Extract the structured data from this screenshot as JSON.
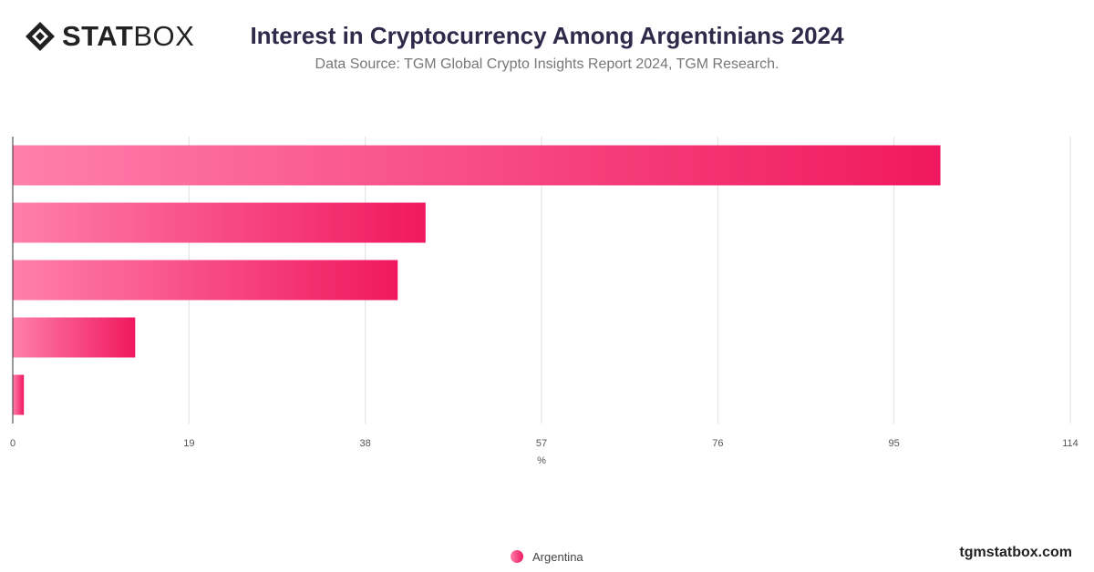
{
  "header": {
    "logo_text_bold": "STAT",
    "logo_text_light": "BOX",
    "title": "Interest in Cryptocurrency Among Argentinians 2024",
    "subtitle": "Data Source: TGM Global Crypto Insights Report 2024, TGM Research."
  },
  "footer": {
    "site": "tgmstatbox.com"
  },
  "colors": {
    "bar_start": "#ff7fab",
    "bar_end": "#f0185f",
    "grid": "#e0e0e0",
    "axis": "#333333"
  },
  "chart_data": {
    "type": "bar",
    "orientation": "horizontal",
    "title": "Interest in Cryptocurrency Among Argentinians 2024",
    "xlabel": "%",
    "ylabel": "",
    "xlim": [
      0,
      114
    ],
    "x_ticks": [
      "0",
      "19",
      "38",
      "57",
      "76",
      "95",
      "114"
    ],
    "categories": [
      "",
      "",
      "",
      "",
      ""
    ],
    "series": [
      {
        "name": "Argentina",
        "values": [
          100,
          44.5,
          41.5,
          13.2,
          1.2
        ]
      }
    ],
    "grid": true,
    "legend_position": "bottom"
  }
}
